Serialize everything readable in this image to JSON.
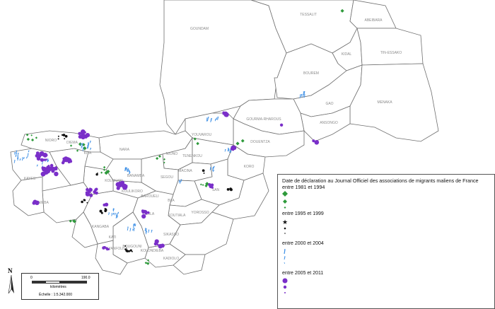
{
  "legend": {
    "title_line1": "Date de déclaration au Journal Officiel des associations de migrants maliens de France",
    "title_line2": "entre 1981 et 1994",
    "groups": [
      {
        "label": "entre 1995 et 1999",
        "color": "#111111",
        "symbol": "star"
      },
      {
        "label": "entre 2000 et 2004",
        "color": "#3a8ee6",
        "symbol": "tick"
      },
      {
        "label": "entre 2005 et 2011",
        "color": "#7a2fc9",
        "symbol": "circle"
      }
    ],
    "first_group_color": "#2e9a3b",
    "first_group_symbol": "diamond"
  },
  "scalebar": {
    "start": "0",
    "end": "190.0",
    "unit": "kilomètres",
    "scale": "Échelle : 1:5.342.000"
  },
  "north_arrow": {
    "label": "N"
  },
  "regions": [
    "GOUNDAM",
    "TESSALIT",
    "ABEIBARA",
    "KIDAL",
    "TIN-ESSAKO",
    "BOUREM",
    "GAO",
    "MENAKA",
    "GOURMA-RHAROUS",
    "ANSONGO",
    "DOUENTZA",
    "YOUVAROU",
    "NARA",
    "NIONO",
    "TENENKOU",
    "MACINA",
    "KORO",
    "SEGOU",
    "BLA",
    "SAN",
    "KOUTIALA",
    "YOROSSO",
    "SIKASSO",
    "DIOILA",
    "KANGABA",
    "KOLOKANI",
    "BANAMBA",
    "KOULIKORO",
    "BAROUELI",
    "KATI",
    "BOUGOUNI",
    "KOLONDIEBA",
    "KADIOLO",
    "YANFOLILA",
    "KENIEBA",
    "KAYES",
    "KITA",
    "DIEMA",
    "NIORO"
  ]
}
